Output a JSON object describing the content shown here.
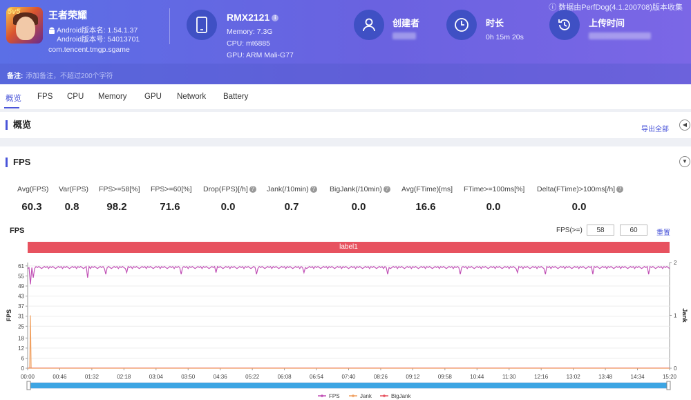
{
  "header": {
    "notice": "数据由PerfDog(4.1.200708)版本收集",
    "app": {
      "name": "王者荣耀",
      "icon_badge": "5v5",
      "version_name": "Android版本名: 1.54.1.37",
      "version_code": "Android版本号: 54013701",
      "package": "com.tencent.tmgp.sgame"
    },
    "device": {
      "name": "RMX2121",
      "memory": "Memory: 7.3G",
      "cpu": "CPU: mt6885",
      "gpu": "GPU: ARM Mali-G77"
    },
    "creator": {
      "title": "创建者"
    },
    "duration": {
      "title": "时长",
      "value": "0h 15m 20s"
    },
    "upload": {
      "title": "上传时间"
    },
    "note": {
      "label": "备注:",
      "placeholder": "添加备注，不超过200个字符"
    }
  },
  "tabs": [
    "概览",
    "FPS",
    "CPU",
    "Memory",
    "GPU",
    "Network",
    "Battery"
  ],
  "overview": {
    "title": "概览",
    "export_label": "导出全部"
  },
  "fps_section": {
    "title": "FPS",
    "stats": [
      {
        "label": "Avg(FPS)",
        "value": "60.3",
        "help": false
      },
      {
        "label": "Var(FPS)",
        "value": "0.8",
        "help": false
      },
      {
        "label": "FPS>=58[%]",
        "value": "98.2",
        "help": false
      },
      {
        "label": "FPS>=60[%]",
        "value": "71.6",
        "help": false
      },
      {
        "label": "Drop(FPS)[/h]",
        "value": "0.0",
        "help": true
      },
      {
        "label": "Jank(/10min)",
        "value": "0.7",
        "help": true
      },
      {
        "label": "BigJank(/10min)",
        "value": "0.0",
        "help": true
      },
      {
        "label": "Avg(FTime)[ms]",
        "value": "16.6",
        "help": false
      },
      {
        "label": "FTime>=100ms[%]",
        "value": "0.0",
        "help": false
      },
      {
        "label": "Delta(FTime)>100ms[/h]",
        "value": "0.0",
        "help": true
      }
    ],
    "chart_label": "FPS",
    "threshold_label": "FPS(>=)",
    "threshold_low": "58",
    "threshold_high": "60",
    "reset_label": "重置",
    "label_bar": "label1"
  },
  "chart_data": {
    "type": "line",
    "title": "FPS",
    "ylabel": "FPS",
    "y2label": "Jank",
    "ylim": [
      0,
      63
    ],
    "y2lim": [
      0,
      2
    ],
    "yticks": [
      0,
      6,
      12,
      18,
      25,
      31,
      37,
      43,
      49,
      55,
      61
    ],
    "y2ticks": [
      0,
      1,
      2
    ],
    "x_tick_labels": [
      "00:00",
      "00:46",
      "01:32",
      "02:18",
      "03:04",
      "03:50",
      "04:36",
      "05:22",
      "06:08",
      "06:54",
      "07:40",
      "08:26",
      "09:12",
      "09:58",
      "10:44",
      "11:30",
      "12:16",
      "13:02",
      "13:48",
      "14:34",
      "15:20"
    ],
    "duration_seconds": 920,
    "series": [
      {
        "name": "FPS",
        "color": "#c04fb5",
        "typical": 60,
        "dips": [
          [
            3,
            50
          ],
          [
            8,
            54
          ],
          [
            86,
            54
          ],
          [
            112,
            56
          ],
          [
            141,
            57
          ],
          [
            220,
            56
          ],
          [
            269,
            57
          ],
          [
            327,
            56
          ],
          [
            395,
            57
          ],
          [
            516,
            56
          ],
          [
            619,
            56
          ],
          [
            701,
            57
          ],
          [
            741,
            56
          ],
          [
            810,
            56
          ],
          [
            890,
            56
          ]
        ]
      },
      {
        "name": "Jank",
        "color": "#f0a060",
        "spikes": [
          [
            4,
            1
          ]
        ]
      },
      {
        "name": "BigJank",
        "color": "#e7525f",
        "spikes": []
      }
    ],
    "legend_position": "bottom"
  }
}
